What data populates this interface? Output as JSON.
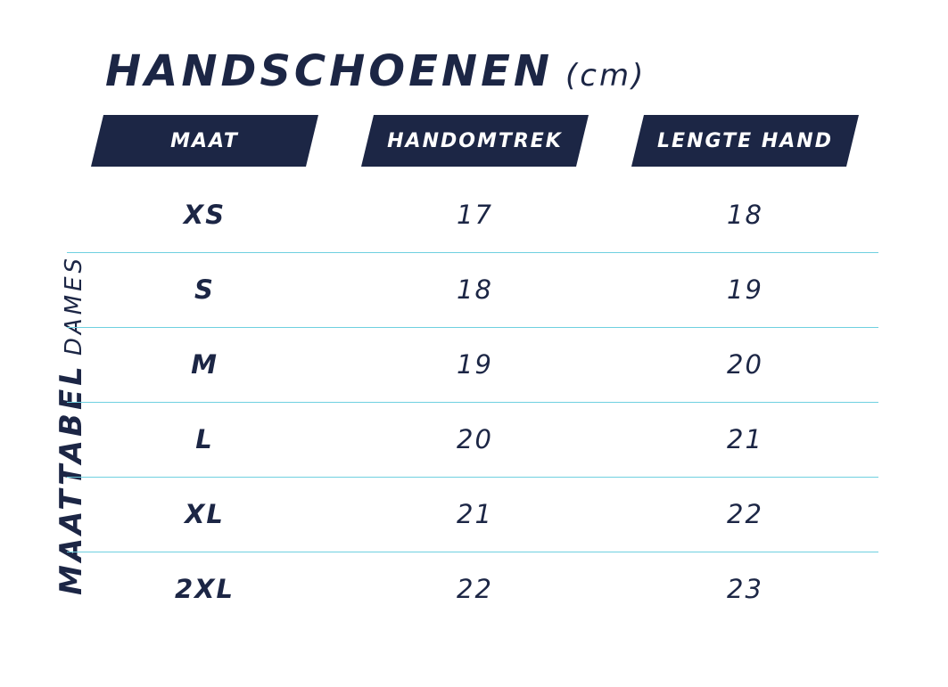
{
  "title": "HANDSCHOENEN",
  "unit": "(cm)",
  "side_label": {
    "main": "MAATTABEL",
    "sub": "DAMES"
  },
  "headers": [
    "MAAT",
    "HANDOMTREK",
    "LENGTE HAND"
  ],
  "rows": [
    {
      "size": "XS",
      "circumference": "17",
      "length": "18"
    },
    {
      "size": "S",
      "circumference": "18",
      "length": "19"
    },
    {
      "size": "M",
      "circumference": "19",
      "length": "20"
    },
    {
      "size": "L",
      "circumference": "20",
      "length": "21"
    },
    {
      "size": "XL",
      "circumference": "21",
      "length": "22"
    },
    {
      "size": "2XL",
      "circumference": "22",
      "length": "23"
    }
  ],
  "colors": {
    "navy": "#1c2645",
    "divider": "#6fd0e0",
    "background": "#ffffff"
  }
}
